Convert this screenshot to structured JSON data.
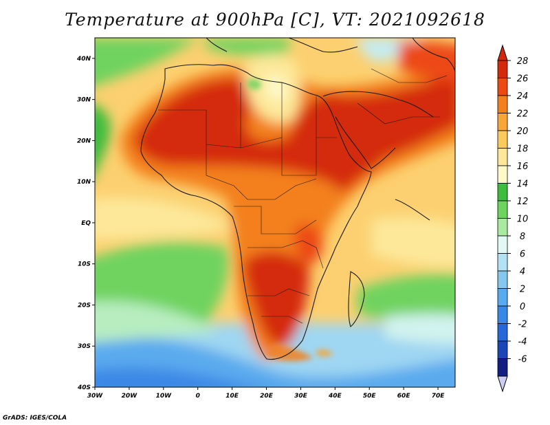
{
  "title": "Temperature at 900hPa [C], VT: 2021092618",
  "credit": "GrADS: IGES/COLA",
  "map": {
    "lon_range": [
      -30,
      75
    ],
    "lat_range": [
      -40,
      45
    ],
    "lon_ticks": [
      "30W",
      "20W",
      "10W",
      "0",
      "10E",
      "20E",
      "30E",
      "40E",
      "50E",
      "60E",
      "70E"
    ],
    "lat_ticks": [
      "40N",
      "30N",
      "20N",
      "10N",
      "EQ",
      "10S",
      "20S",
      "30S",
      "40S"
    ]
  },
  "colorbar": {
    "labels": [
      "28",
      "26",
      "24",
      "22",
      "20",
      "18",
      "16",
      "14",
      "12",
      "10",
      "8",
      "6",
      "4",
      "2",
      "0",
      "-2",
      "-4",
      "-6"
    ],
    "colors": [
      "#d42a0c",
      "#ec4a12",
      "#f3801c",
      "#f7a638",
      "#fcc95c",
      "#fde89a",
      "#fdf9c8",
      "#3ebc3e",
      "#6fd35f",
      "#aaeaa0",
      "#e2f8f4",
      "#b3e2f4",
      "#86c7ee",
      "#5aaaee",
      "#3a88e6",
      "#2867d8",
      "#1c46b8",
      "#121e80"
    ]
  }
}
